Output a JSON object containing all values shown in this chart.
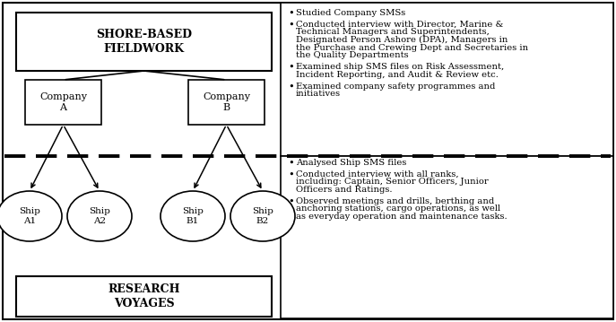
{
  "bg_color": "#ffffff",
  "shore_label": "SHORE-BASED\nFIELDWORK",
  "company_a_label": "Company\nA",
  "company_b_label": "Company\nB",
  "ships": [
    "Ship\nA1",
    "Ship\nA2",
    "Ship\nB1",
    "Ship\nB2"
  ],
  "research_label": "RESEARCH\nVOYAGES",
  "bullet_top": [
    "Studied Company SMSs",
    "Conducted interview with Director, Marine &\nTechnical Managers and Superintendents,\nDesignated Person Ashore (DPA), Managers in\nthe Purchase and Crewing Dept and Secretaries in\nthe Quality Departments",
    "Examined ship SMS files on Risk Assessment,\nIncident Reporting, and Audit & Review etc.",
    "Examined company safety programmes and\ninitiatives"
  ],
  "bullet_bottom": [
    "Analysed Ship SMS files",
    "Conducted interview with all ranks,\nincluding: Captain, Senior Officers, Junior\nOfficers and Ratings.",
    "Observed meetings and drills, berthing and\nanchoring stations, cargo operations, as well\nas everyday operation and maintenance tasks."
  ],
  "font_size_shore": 9,
  "font_size_company": 8,
  "font_size_ship": 7.5,
  "font_size_research": 9,
  "font_size_bullet": 7.2
}
